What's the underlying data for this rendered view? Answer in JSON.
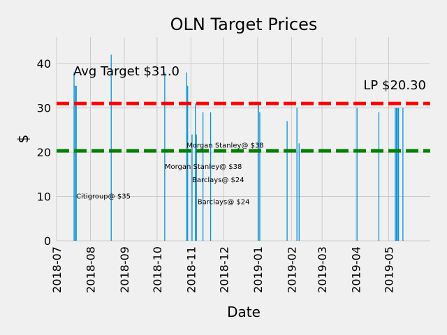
{
  "chart_data": {
    "type": "bar",
    "title": "OLN Target Prices",
    "xlabel": "Date",
    "ylabel": "$",
    "ylim": [
      0,
      46
    ],
    "xlim": [
      "2018-07-01",
      "2019-06-08"
    ],
    "grid": true,
    "yticks": [
      0,
      10,
      20,
      30,
      40
    ],
    "xticks": [
      "2018-07",
      "2018-08",
      "2018-09",
      "2018-10",
      "2018-11",
      "2018-12",
      "2019-01",
      "2019-02",
      "2019-03",
      "2019-04",
      "2019-05"
    ],
    "bar_color": "#008fd5",
    "bars": [
      {
        "date": "2018-07-17",
        "value": 38
      },
      {
        "date": "2018-07-18",
        "value": 35
      },
      {
        "date": "2018-07-19",
        "value": 35
      },
      {
        "date": "2018-08-20",
        "value": 42
      },
      {
        "date": "2018-10-08",
        "value": 38
      },
      {
        "date": "2018-10-28",
        "value": 38
      },
      {
        "date": "2018-10-29",
        "value": 35
      },
      {
        "date": "2018-11-02",
        "value": 24
      },
      {
        "date": "2018-11-05",
        "value": 31
      },
      {
        "date": "2018-11-06",
        "value": 24
      },
      {
        "date": "2018-11-12",
        "value": 29
      },
      {
        "date": "2018-11-19",
        "value": 29
      },
      {
        "date": "2019-01-02",
        "value": 31
      },
      {
        "date": "2019-01-03",
        "value": 29
      },
      {
        "date": "2019-01-28",
        "value": 27
      },
      {
        "date": "2019-02-06",
        "value": 30
      },
      {
        "date": "2019-02-08",
        "value": 22
      },
      {
        "date": "2019-04-02",
        "value": 30
      },
      {
        "date": "2019-04-22",
        "value": 29
      },
      {
        "date": "2019-05-07",
        "value": 30
      },
      {
        "date": "2019-05-08",
        "value": 30
      },
      {
        "date": "2019-05-09",
        "value": 30
      },
      {
        "date": "2019-05-10",
        "value": 30
      },
      {
        "date": "2019-05-14",
        "value": 30
      }
    ],
    "reference_lines": [
      {
        "value": 31.0,
        "color": "#ff0000",
        "label": "Avg Target $31.0"
      },
      {
        "value": 20.3,
        "color": "#008000",
        "label": "LP $20.30"
      }
    ],
    "annotations": [
      {
        "text": "Citigroup@ $35",
        "date": "2018-07-19",
        "value": 9.5
      },
      {
        "text": "Morgan Stanley@ $38",
        "date": "2018-10-28",
        "value": 21.0
      },
      {
        "text": "Morgan Stanley@ $38",
        "date": "2018-10-08",
        "value": 16.2
      },
      {
        "text": "Barclays@ $24",
        "date": "2018-11-02",
        "value": 13.2
      },
      {
        "text": "Barclays@ $24",
        "date": "2018-11-07",
        "value": 8.3
      }
    ]
  }
}
